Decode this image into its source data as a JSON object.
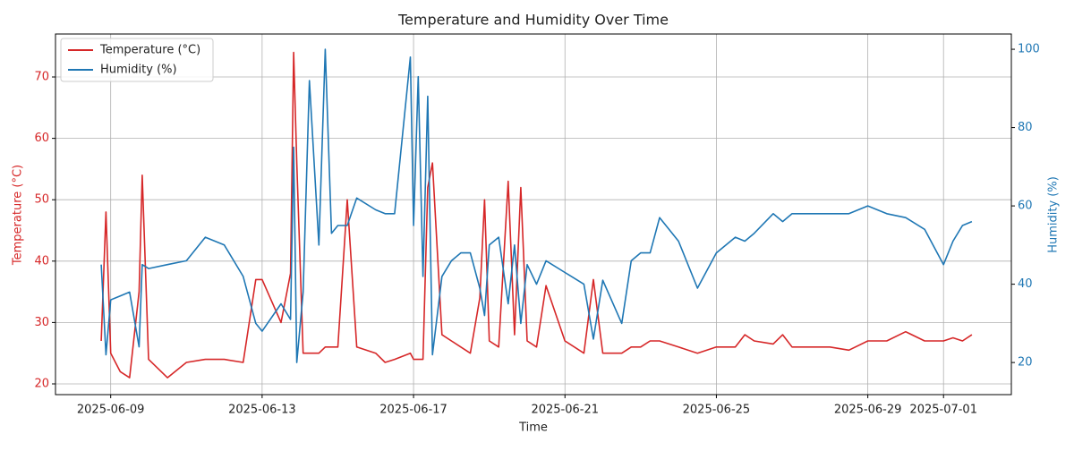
{
  "chart_data": {
    "type": "line",
    "title": "Temperature and Humidity Over Time",
    "x_label": "Time",
    "y_label": "Temperature (°C)",
    "y2_label": "Humidity (%)",
    "x": [
      "2025-06-08 18:00",
      "2025-06-08 21:00",
      "2025-06-09 00:00",
      "2025-06-09 06:00",
      "2025-06-09 12:00",
      "2025-06-09 18:00",
      "2025-06-09 20:00",
      "2025-06-10 00:00",
      "2025-06-10 12:00",
      "2025-06-11 00:00",
      "2025-06-11 12:00",
      "2025-06-12 00:00",
      "2025-06-12 12:00",
      "2025-06-12 20:00",
      "2025-06-13 00:00",
      "2025-06-13 12:00",
      "2025-06-13 18:00",
      "2025-06-13 20:00",
      "2025-06-13 22:00",
      "2025-06-14 02:00",
      "2025-06-14 06:00",
      "2025-06-14 12:00",
      "2025-06-14 16:00",
      "2025-06-14 20:00",
      "2025-06-15 00:00",
      "2025-06-15 06:00",
      "2025-06-15 12:00",
      "2025-06-16 00:00",
      "2025-06-16 06:00",
      "2025-06-16 12:00",
      "2025-06-16 22:00",
      "2025-06-17 00:00",
      "2025-06-17 03:00",
      "2025-06-17 06:00",
      "2025-06-17 09:00",
      "2025-06-17 12:00",
      "2025-06-17 18:00",
      "2025-06-18 00:00",
      "2025-06-18 06:00",
      "2025-06-18 12:00",
      "2025-06-18 18:00",
      "2025-06-18 21:00",
      "2025-06-19 00:00",
      "2025-06-19 06:00",
      "2025-06-19 12:00",
      "2025-06-19 16:00",
      "2025-06-19 20:00",
      "2025-06-20 00:00",
      "2025-06-20 06:00",
      "2025-06-20 12:00",
      "2025-06-21 00:00",
      "2025-06-21 12:00",
      "2025-06-21 18:00",
      "2025-06-22 00:00",
      "2025-06-22 12:00",
      "2025-06-22 18:00",
      "2025-06-23 00:00",
      "2025-06-23 06:00",
      "2025-06-23 12:00",
      "2025-06-24 00:00",
      "2025-06-24 12:00",
      "2025-06-25 00:00",
      "2025-06-25 12:00",
      "2025-06-25 18:00",
      "2025-06-26 00:00",
      "2025-06-26 12:00",
      "2025-06-26 18:00",
      "2025-06-27 00:00",
      "2025-06-27 12:00",
      "2025-06-28 00:00",
      "2025-06-28 12:00",
      "2025-06-29 00:00",
      "2025-06-29 12:00",
      "2025-06-30 00:00",
      "2025-06-30 12:00",
      "2025-07-01 00:00",
      "2025-07-01 06:00",
      "2025-07-01 12:00",
      "2025-07-01 18:00"
    ],
    "series": [
      {
        "name": "Temperature (°C)",
        "color": "#d62728",
        "axis": "y",
        "values": [
          27,
          48,
          25,
          22,
          21,
          35,
          54,
          24,
          21,
          23.5,
          24,
          24,
          23.5,
          37,
          37,
          30,
          38,
          74,
          56,
          25,
          25,
          25,
          26,
          26,
          26,
          50,
          26,
          25,
          23.5,
          24,
          25,
          24,
          24,
          24,
          52,
          56,
          28,
          27,
          26,
          25,
          34,
          50,
          27,
          26,
          53,
          28,
          52,
          27,
          26,
          36,
          27,
          25,
          37,
          25,
          25,
          26,
          26,
          27,
          27,
          26,
          25,
          26,
          26,
          28,
          27,
          26.5,
          28,
          26,
          26,
          26,
          25.5,
          27,
          27,
          28.5,
          27,
          27,
          27.5,
          27,
          28
        ]
      },
      {
        "name": "Humidity (%)",
        "color": "#1f77b4",
        "axis": "y2",
        "values": [
          45,
          22,
          36,
          37,
          38,
          24,
          45,
          44,
          45,
          46,
          52,
          50,
          42,
          30,
          28,
          35,
          31,
          75,
          20,
          38,
          92,
          50,
          100,
          53,
          55,
          55,
          62,
          59,
          58,
          58,
          98,
          55,
          93,
          42,
          88,
          22,
          42,
          46,
          48,
          48,
          39,
          32,
          50,
          52,
          35,
          50,
          30,
          45,
          40,
          46,
          43,
          40,
          26,
          41,
          30,
          46,
          48,
          48,
          57,
          51,
          39,
          48,
          52,
          51,
          53,
          58,
          56,
          58,
          58,
          58,
          58,
          60,
          58,
          57,
          54,
          45,
          51,
          55,
          56
        ]
      }
    ],
    "xlim": [
      "2025-06-07 13:00",
      "2025-07-02 19:00"
    ],
    "xticks": [
      "2025-06-09",
      "2025-06-13",
      "2025-06-17",
      "2025-06-21",
      "2025-06-25",
      "2025-06-29",
      "2025-07-01"
    ],
    "ylim": [
      18.25,
      77
    ],
    "yticks": [
      20,
      30,
      40,
      50,
      60,
      70
    ],
    "y2lim": [
      11.8,
      103.9
    ],
    "y2ticks": [
      20,
      40,
      60,
      80,
      100
    ],
    "grid": true,
    "legend": "upper left"
  }
}
